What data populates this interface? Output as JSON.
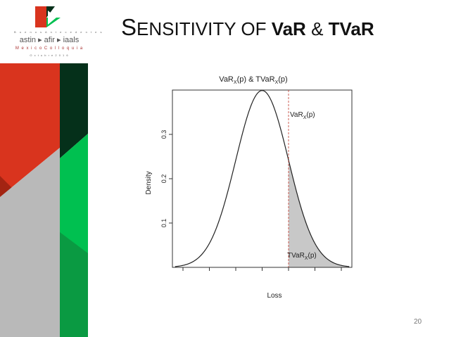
{
  "slide": {
    "title_first_letter": "S",
    "title_rest": "ENSITIVITY OF ",
    "title_var": "VaR",
    "title_amp": " & ",
    "title_tvar": "TVaR",
    "page_number": "20"
  },
  "logo": {
    "line1": "B u e n o s  A n t e c e d e n t e s",
    "line2": "astin ▸ afir ▸ iaals",
    "line3": "M e x i c o  C o l l o q u i a",
    "line4": "O c t u b r e  2 0 1 6"
  },
  "colors": {
    "red": "#d9341e",
    "green_bright": "#00c050",
    "green_dark": "#05301a",
    "gray": "#b9b9b9"
  },
  "chart_data": {
    "type": "area",
    "title": "VaR_X(p) & TVaR_X(p)",
    "title_main": "VaR",
    "title_sub_x": "X",
    "title_p": "(p) & TVaR",
    "title_sub_x2": "X",
    "title_p2": "(p)",
    "xlabel": "Loss",
    "ylabel": "Density",
    "distribution": "normal",
    "mean": 0,
    "sd": 1,
    "xlim": [
      -3.4,
      3.4
    ],
    "ylim": [
      0,
      0.4
    ],
    "yticks": [
      0.1,
      0.2,
      0.3
    ],
    "ytick_labels": [
      "0.1",
      "0.2",
      "0.3"
    ],
    "xticks": [
      -3,
      -2,
      -1,
      0,
      1,
      2,
      3
    ],
    "var_x": 1.0,
    "var_label": "VaR_X(p)",
    "tvar_label": "TVaR_X(p)",
    "var_label_parts": [
      "VaR",
      "X",
      "(p)"
    ],
    "tvar_label_parts": [
      "TVaR",
      "X",
      "(p)"
    ],
    "shaded_region": "x >= VaR_X(p)",
    "grid": false,
    "legend": "none"
  }
}
